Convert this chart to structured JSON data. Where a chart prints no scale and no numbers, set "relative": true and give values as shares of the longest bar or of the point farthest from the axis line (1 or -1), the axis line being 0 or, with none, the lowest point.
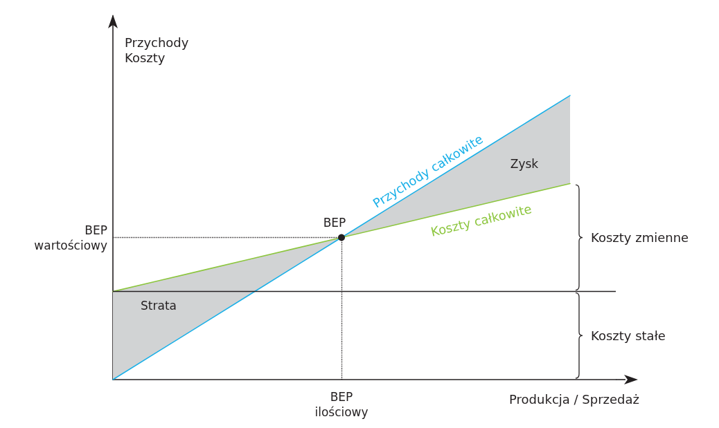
{
  "chart_data": {
    "type": "line",
    "relative": true,
    "xlabel": "Produkcja / Sprzedaż",
    "ylabel": "Przychody\nKoszty",
    "categories": [
      null,
      null,
      null,
      null,
      null,
      null,
      null,
      null,
      null,
      null,
      null,
      null
    ],
    "series": [
      {
        "name": "Przychody całkowite",
        "color": "#1ab0e8",
        "values": [
          0,
          0.1,
          0.2,
          0.3,
          0.4,
          0.5,
          0.6,
          0.7,
          0.8,
          0.9,
          1,
          null
        ]
      },
      {
        "name": "Koszty całkowite",
        "color": "#8dc63f",
        "values": [
          0.31,
          0.348,
          0.386,
          0.424,
          0.462,
          0.5,
          0.538,
          0.576,
          0.614,
          0.652,
          0.69,
          null
        ]
      }
    ],
    "ref_lines": [
      {
        "axis": "y",
        "value": 0.31,
        "label": null,
        "color": "#231f20",
        "line_style": "solid"
      },
      {
        "axis": "y",
        "value": 0.5,
        "label": "BEP\nwartościowy",
        "color": "#231f20",
        "line_style": "dotted"
      }
    ],
    "annotations": [
      "Strata",
      "Zysk",
      {
        "text": "BEP",
        "y": 0.5
      },
      "BEP\nilościowy",
      "Koszty zmienne",
      "Koszty stałe"
    ],
    "legend": false,
    "grid": false,
    "marker": "none",
    "line_style": "solid"
  }
}
